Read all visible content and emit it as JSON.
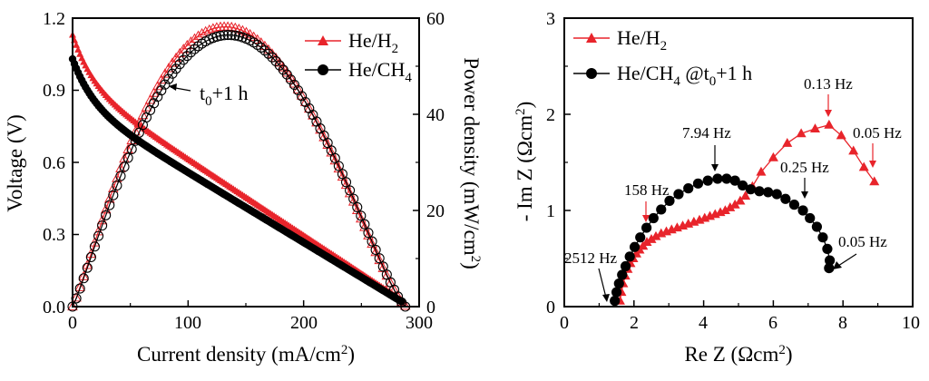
{
  "colors": {
    "red": "#e8242b",
    "black": "#000000",
    "open_ring": "#000000"
  },
  "chart_data": [
    {
      "type": "line",
      "id": "iv",
      "xlabel": {
        "main": "Current density (mA/cm",
        "sup": "2",
        "tail": ")"
      },
      "ylabel": "Voltage (V)",
      "y2label": {
        "main": "Power density (mW/cm",
        "sup": "2",
        "tail": ")"
      },
      "xlim": [
        0,
        300
      ],
      "ylim": [
        0,
        1.2
      ],
      "y2lim": [
        0,
        60
      ],
      "xticks": [
        "0",
        "100",
        "200",
        "300"
      ],
      "yticks": [
        "0.0",
        "0.3",
        "0.6",
        "0.9",
        "1.2"
      ],
      "y2ticks": [
        "0",
        "20",
        "40",
        "60"
      ],
      "annotation": {
        "main": "t",
        "sub": "0",
        "tail": "+1 h",
        "at_x": 80,
        "at_y2": 48
      },
      "legend_location": "top-right",
      "series": [
        {
          "name": "He/H2",
          "label_main": "He/H",
          "label_sub": "2",
          "color": "#e8242b",
          "marker": "triangle",
          "voltage_curve": {
            "x_max": 287,
            "v0": 1.13,
            "v_end": 0.02
          },
          "power_curve": {
            "x_max": 289,
            "peak_x": 132,
            "peak_p": 58.2
          }
        },
        {
          "name": "He/CH4",
          "label_main": "He/CH",
          "label_sub": "4",
          "color": "#000000",
          "marker": "circle",
          "voltage_curve": {
            "x_max": 285,
            "v0": 1.03,
            "v_end": 0.02
          },
          "power_curve": {
            "x_max": 288,
            "peak_x": 135,
            "peak_p": 56.5
          }
        }
      ]
    },
    {
      "type": "scatter",
      "id": "eis",
      "xlabel": {
        "main": "Re Z (Ωcm",
        "sup": "2",
        "tail": ")"
      },
      "ylabel": {
        "main": "- Im Z (Ωcm",
        "sup": "2",
        "tail": ")"
      },
      "xlim": [
        0,
        10
      ],
      "ylim": [
        0,
        3
      ],
      "xticks": [
        "0",
        "2",
        "4",
        "6",
        "8",
        "10"
      ],
      "yticks": [
        "0",
        "1",
        "2",
        "3"
      ],
      "legend_location": "top-left",
      "series": [
        {
          "name": "He/H2",
          "label_main": "He/H",
          "label_sub": "2",
          "label_tail": "",
          "color": "#e8242b",
          "marker": "triangle",
          "points": [
            [
              1.6,
              0.06
            ],
            [
              1.64,
              0.15
            ],
            [
              1.69,
              0.24
            ],
            [
              1.75,
              0.32
            ],
            [
              1.82,
              0.39
            ],
            [
              1.9,
              0.45
            ],
            [
              1.98,
              0.5
            ],
            [
              2.07,
              0.55
            ],
            [
              2.16,
              0.59
            ],
            [
              2.26,
              0.63
            ],
            [
              2.37,
              0.67
            ],
            [
              2.5,
              0.7
            ],
            [
              2.63,
              0.73
            ],
            [
              2.78,
              0.76
            ],
            [
              2.93,
              0.78
            ],
            [
              3.08,
              0.8
            ],
            [
              3.24,
              0.82
            ],
            [
              3.4,
              0.84
            ],
            [
              3.56,
              0.86
            ],
            [
              3.72,
              0.88
            ],
            [
              3.88,
              0.9
            ],
            [
              4.03,
              0.92
            ],
            [
              4.18,
              0.94
            ],
            [
              4.33,
              0.96
            ],
            [
              4.48,
              0.98
            ],
            [
              4.62,
              1.0
            ],
            [
              4.76,
              1.03
            ],
            [
              4.9,
              1.06
            ],
            [
              5.05,
              1.1
            ],
            [
              5.2,
              1.15
            ],
            [
              5.4,
              1.25
            ],
            [
              5.65,
              1.4
            ],
            [
              6.0,
              1.55
            ],
            [
              6.4,
              1.7
            ],
            [
              6.8,
              1.8
            ],
            [
              7.2,
              1.85
            ],
            [
              7.6,
              1.89
            ],
            [
              7.95,
              1.78
            ],
            [
              8.3,
              1.62
            ],
            [
              8.6,
              1.45
            ],
            [
              8.9,
              1.3
            ]
          ]
        },
        {
          "name": "He/CH4",
          "label_main": "He/CH",
          "label_sub": "4",
          "label_tail": " @t",
          "label_sub2": "0",
          "label_tail2": "+1 h",
          "color": "#000000",
          "marker": "circle",
          "points": [
            [
              1.45,
              0.06
            ],
            [
              1.5,
              0.15
            ],
            [
              1.57,
              0.24
            ],
            [
              1.66,
              0.33
            ],
            [
              1.76,
              0.42
            ],
            [
              1.88,
              0.52
            ],
            [
              2.02,
              0.62
            ],
            [
              2.18,
              0.72
            ],
            [
              2.36,
              0.82
            ],
            [
              2.56,
              0.92
            ],
            [
              2.78,
              1.01
            ],
            [
              3.02,
              1.1
            ],
            [
              3.28,
              1.17
            ],
            [
              3.56,
              1.23
            ],
            [
              3.84,
              1.28
            ],
            [
              4.12,
              1.31
            ],
            [
              4.4,
              1.33
            ],
            [
              4.66,
              1.33
            ],
            [
              4.9,
              1.31
            ],
            [
              5.12,
              1.26
            ],
            [
              5.35,
              1.22
            ],
            [
              5.6,
              1.2
            ],
            [
              5.85,
              1.19
            ],
            [
              6.1,
              1.17
            ],
            [
              6.35,
              1.12
            ],
            [
              6.6,
              1.06
            ],
            [
              6.85,
              1.0
            ],
            [
              7.05,
              0.92
            ],
            [
              7.25,
              0.83
            ],
            [
              7.42,
              0.72
            ],
            [
              7.55,
              0.6
            ],
            [
              7.62,
              0.48
            ],
            [
              7.6,
              0.4
            ]
          ]
        }
      ],
      "annotations": [
        {
          "text": "0.13 Hz",
          "color": "#e8242b"
        },
        {
          "text": "0.05 Hz",
          "color": "#e8242b"
        },
        {
          "text": "158 Hz",
          "color": "#e8242b"
        },
        {
          "text": "7.94 Hz",
          "color": "#000000"
        },
        {
          "text": "0.25 Hz",
          "color": "#000000"
        },
        {
          "text": "0.05 Hz",
          "color": "#000000"
        },
        {
          "text": "2512 Hz",
          "color": "#000000"
        }
      ]
    }
  ]
}
